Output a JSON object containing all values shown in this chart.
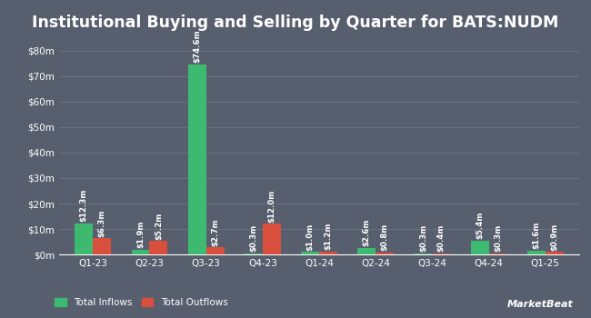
{
  "title": "Institutional Buying and Selling by Quarter for BATS:NUDM",
  "quarters": [
    "Q1-23",
    "Q2-23",
    "Q3-23",
    "Q4-23",
    "Q1-24",
    "Q2-24",
    "Q3-24",
    "Q4-24",
    "Q1-25"
  ],
  "inflows": [
    12.3,
    1.9,
    74.6,
    0.3,
    1.0,
    2.6,
    0.3,
    5.4,
    1.6
  ],
  "outflows": [
    6.3,
    5.2,
    2.7,
    12.0,
    1.2,
    0.8,
    0.4,
    0.3,
    0.9
  ],
  "inflow_labels": [
    "$12.3m",
    "$1.9m",
    "$74.6m",
    "$0.3m",
    "$1.0m",
    "$2.6m",
    "$0.3m",
    "$5.4m",
    "$1.6m"
  ],
  "outflow_labels": [
    "$6.3m",
    "$5.2m",
    "$2.7m",
    "$12.0m",
    "$1.2m",
    "$0.8m",
    "$0.4m",
    "$0.3m",
    "$0.9m"
  ],
  "inflow_color": "#3dba6f",
  "outflow_color": "#d94f3d",
  "bg_color": "#575f6e",
  "grid_color": "#6b7280",
  "text_color": "#ffffff",
  "bar_width": 0.32,
  "ylim": [
    0,
    85
  ],
  "yticks": [
    0,
    10,
    20,
    30,
    40,
    50,
    60,
    70,
    80
  ],
  "ytick_labels": [
    "$0m",
    "$10m",
    "$20m",
    "$30m",
    "$40m",
    "$50m",
    "$60m",
    "$70m",
    "$80m"
  ],
  "legend_inflow": "Total Inflows",
  "legend_outflow": "Total Outflows",
  "title_fontsize": 12.5,
  "label_fontsize": 6.2,
  "tick_fontsize": 7.5,
  "legend_fontsize": 7.5
}
